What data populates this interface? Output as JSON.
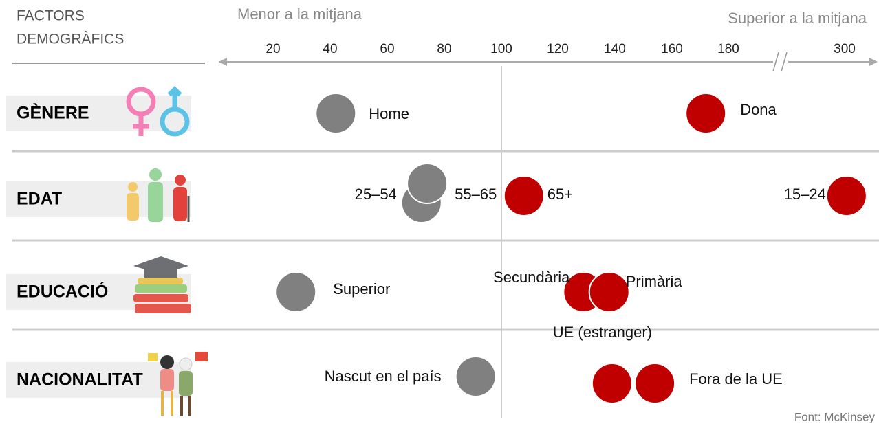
{
  "chart_data": {
    "type": "dot",
    "title": [
      "FACTORS",
      "DEMOGRÀFICS"
    ],
    "left_label": "Menor a la mitjana",
    "right_label": "Superior a la mitjana",
    "source": "Font: McKinsey",
    "xticks": [
      20,
      40,
      60,
      80,
      100,
      120,
      140,
      160,
      180,
      300
    ],
    "reference": 100,
    "groups": [
      {
        "name": "GÈNERE",
        "points": [
          {
            "label": "Home",
            "value": 42,
            "color": "#808080"
          },
          {
            "label": "Dona",
            "value": 172,
            "color": "#c00000"
          }
        ]
      },
      {
        "name": "EDAT",
        "points": [
          {
            "label": "25–54",
            "value": 72,
            "color": "#808080"
          },
          {
            "label": "55–65",
            "value": 74,
            "color": "#808080"
          },
          {
            "label": "65+",
            "value": 108,
            "color": "#c00000"
          },
          {
            "label": "15–24",
            "value": 302,
            "color": "#c00000"
          }
        ]
      },
      {
        "name": "EDUCACIÓ",
        "points": [
          {
            "label": "Superior",
            "value": 28,
            "color": "#808080"
          },
          {
            "label": "Secundària",
            "value": 129,
            "color": "#c00000"
          },
          {
            "label": "Primària",
            "value": 138,
            "color": "#c00000"
          }
        ]
      },
      {
        "name": "NACIONALITAT",
        "points": [
          {
            "label": "Nascut en el país",
            "value": 91,
            "color": "#808080"
          },
          {
            "label": "UE (estranger)",
            "value": 139,
            "color": "#c00000"
          },
          {
            "label": "Fora de la UE",
            "value": 154,
            "color": "#c00000"
          }
        ]
      }
    ]
  }
}
